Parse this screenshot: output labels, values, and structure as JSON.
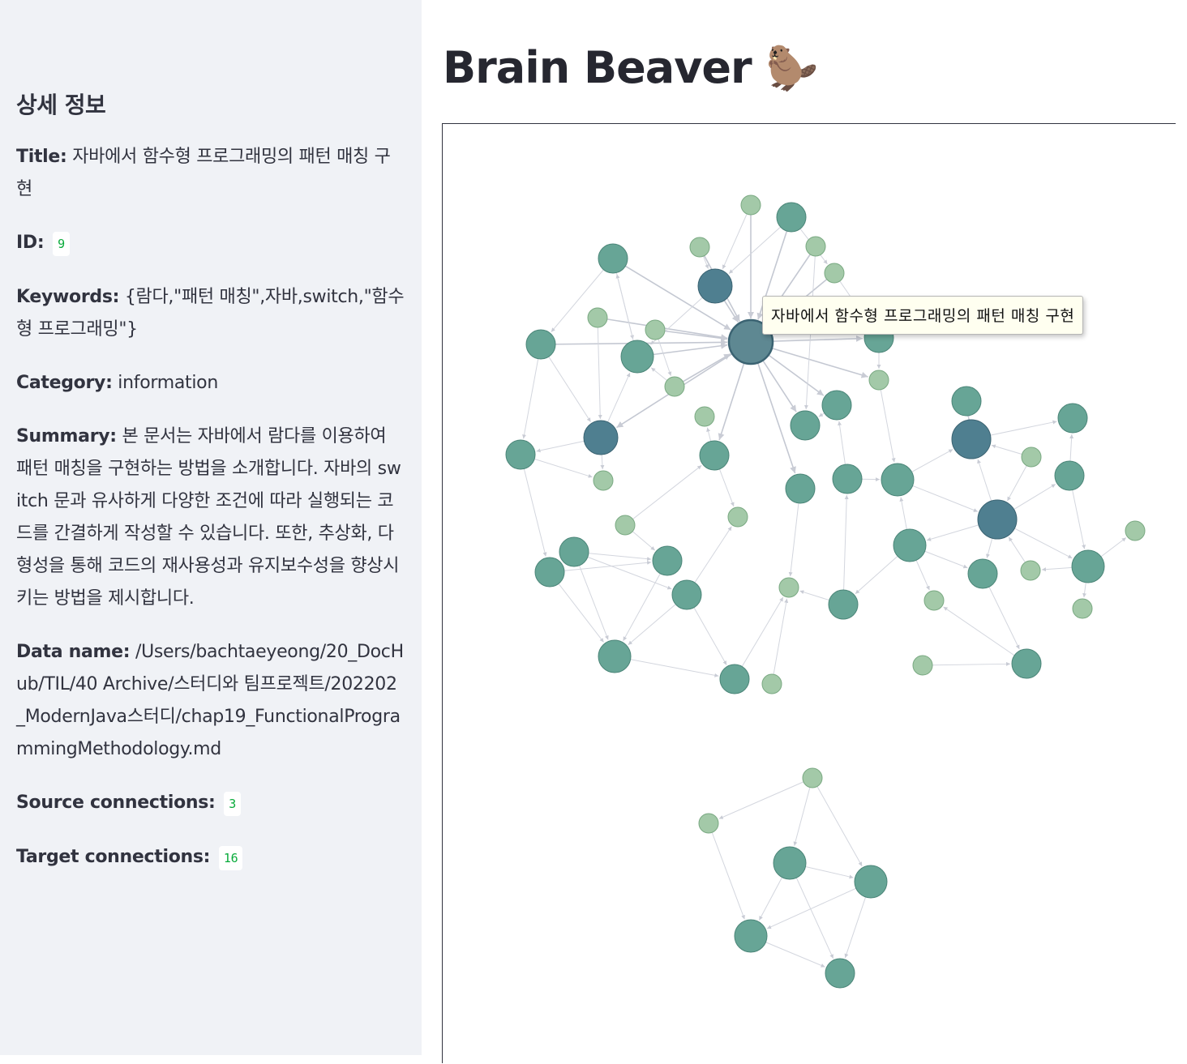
{
  "sidebar": {
    "heading": "상세 정보",
    "title_label": "Title:",
    "title_value": "자바에서 함수형 프로그래밍의 패턴 매칭 구현",
    "id_label": "ID:",
    "id_value": "9",
    "keywords_label": "Keywords:",
    "keywords_value": "{람다,\"패턴 매칭\",자바,switch,\"함수형 프로그래밍\"}",
    "category_label": "Category:",
    "category_value": "information",
    "summary_label": "Summary:",
    "summary_value": "본 문서는 자바에서 람다를 이용하여 패턴 매칭을 구현하는 방법을 소개합니다. 자바의 switch 문과 유사하게 다양한 조건에 따라 실행되는 코드를 간결하게 작성할 수 있습니다. 또한, 추상화, 다형성을 통해 코드의 재사용성과 유지보수성을 향상시키는 방법을 제시합니다.",
    "dataname_label": "Data name:",
    "dataname_value": "/Users/bachtaeyeong/20_DocHub/TIL/40 Archive/스터디와 팀프로젝트/202202_ModernJava스터디/chap19_FunctionalProgrammingMethodology.md",
    "source_label": "Source connections:",
    "source_value": "3",
    "target_label": "Target connections:",
    "target_value": "16"
  },
  "main": {
    "title": "Brain Beaver",
    "title_emoji": "🦫"
  },
  "graph": {
    "tooltip": "자바에서 함수형 프로그래밍의 패턴 매칭 구현",
    "colors": {
      "light": "#a3c9a8",
      "light_stroke": "#7aa982",
      "mid": "#67a596",
      "mid_stroke": "#4b8578",
      "dark": "#4f7f90",
      "dark_stroke": "#3b6372",
      "selected": "#5e8892",
      "edge": "#d3d6de"
    }
  }
}
